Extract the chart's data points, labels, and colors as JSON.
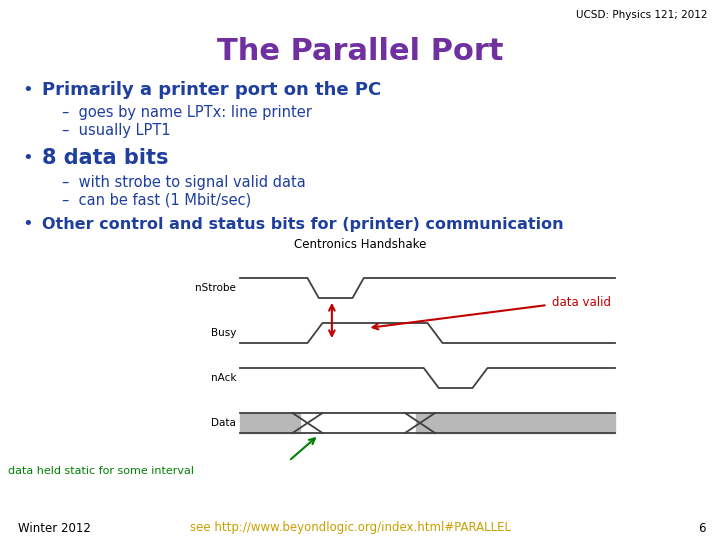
{
  "title": "The Parallel Port",
  "title_color": "#7030A0",
  "header": "UCSD: Physics 121; 2012",
  "header_color": "#000000",
  "bullet1": "Primarily a printer port on the PC",
  "sub1a": "goes by name LPTx: line printer",
  "sub1b": "usually LPT1",
  "bullet2": "8 data bits",
  "sub2a": "with strobe to signal valid data",
  "sub2b": "can be fast (1 Mbit/sec)",
  "bullet3": "Other control and status bits for (printer) communication",
  "bullet_color": "#1F3F9F",
  "sub_color": "#1F3F9F",
  "diagram_title": "Centronics Handshake",
  "diagram_title_color": "#000000",
  "data_valid_label": "data valid",
  "data_valid_color": "#C00000",
  "data_held_label": "data held static for some interval",
  "data_held_color": "#008000",
  "footer_left": "Winter 2012",
  "footer_left_color": "#000000",
  "footer_url": "see http://www.beyondlogic.org/index.html#PARALLEL",
  "footer_url_color": "#C8A000",
  "footer_page": "6",
  "footer_page_color": "#000000",
  "bg_color": "#FFFFFF",
  "wave_color": "#404040",
  "gray_color": "#B8B8B8"
}
